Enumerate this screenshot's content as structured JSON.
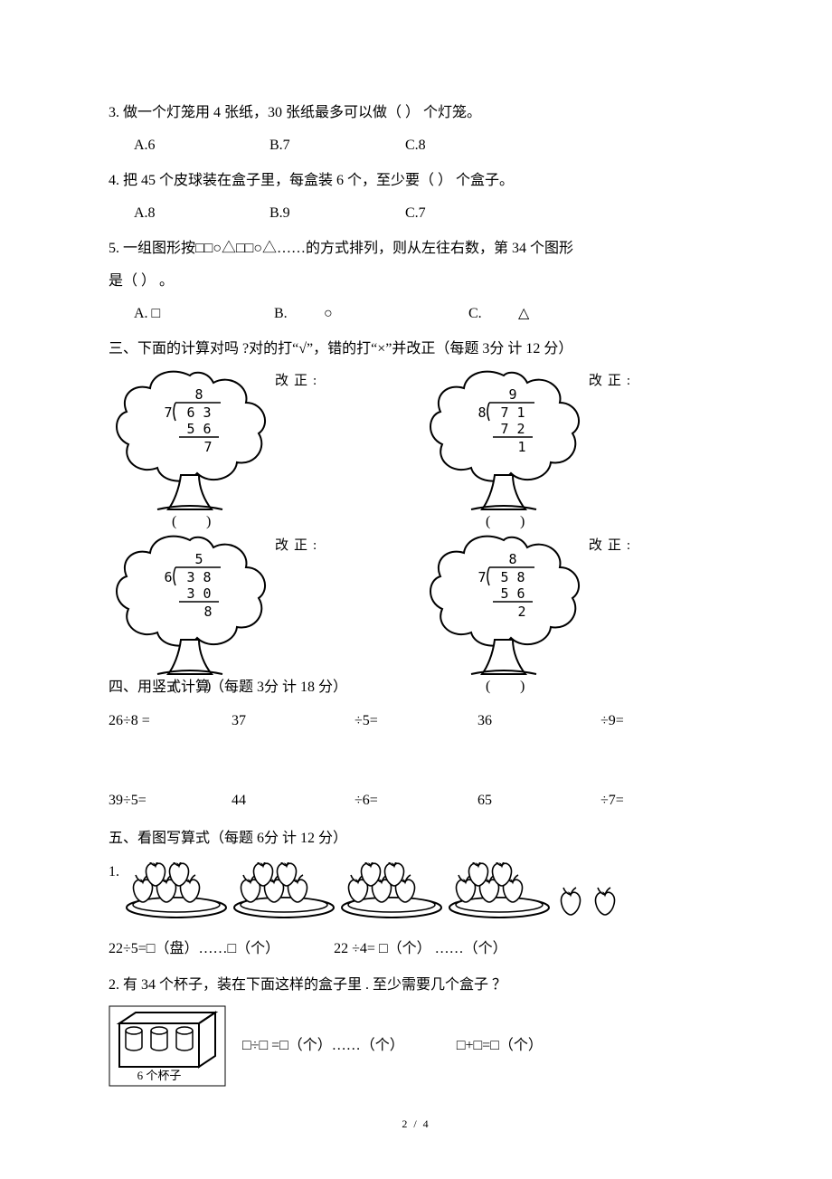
{
  "q3": {
    "text": "3. 做一个灯笼用  4 张纸，30 张纸最多可以做（ ）   个灯笼。",
    "a": "A.6",
    "b": "B.7",
    "c": "C.8",
    "a_w": 150,
    "b_w": 150
  },
  "q4": {
    "text": "4. 把 45 个皮球装在盒子里，每盒装   6 个，至少要（ ）   个盒子。",
    "a": "A.8",
    "b": "B.9",
    "c": "C.7",
    "a_w": 150,
    "b_w": 150
  },
  "q5": {
    "line1": "5. 一组图形按□□○△□□○△……的方式排列，则从左往右数，第      34 个图形",
    "line2": "是（  ）  。",
    "a": "A. □",
    "b": "B.",
    "b_sym": "○",
    "c": "C.",
    "c_sym": "△",
    "a_w": 155,
    "b_w": 55,
    "bs_w": 160,
    "c_w": 55
  },
  "sec3": {
    "title": "三、下面的计算对吗 ?对的打“√”，错的打“×”并改正（每题 3分   计 12 分）",
    "gaizheng": "改正:",
    "problems": [
      {
        "divisor": "7",
        "dividend": "6  3",
        "quo": "8",
        "sub": "5  6",
        "rem": "7"
      },
      {
        "divisor": "8",
        "dividend": "7  1",
        "quo": "9",
        "sub": "7  2",
        "rem": "1"
      },
      {
        "divisor": "6",
        "dividend": "3  8",
        "quo": "5",
        "sub": "3  0",
        "rem": "8"
      },
      {
        "divisor": "7",
        "dividend": "5  8",
        "quo": "8",
        "sub": "5  6",
        "rem": "2"
      }
    ]
  },
  "sec4": {
    "title": "四、用竖式计算（每题 3分   计 18 分）",
    "r1": {
      "a": "26÷8 =",
      "b": "37",
      "c": "÷5=",
      "d": "36",
      "e": "÷9="
    },
    "r2": {
      "a": "39÷5=",
      "b": "44",
      "c": "÷6=",
      "d": "65",
      "e": "÷7="
    }
  },
  "sec5": {
    "title": "五、看图写算式（每题 6分   计 12 分）",
    "q1_label": "1.",
    "eq1a": "22÷5=□（盘）……□（个）",
    "eq1b": "22        ÷4= □（个） ……（个）",
    "q2": "2. 有 34 个杯子，装在下面这样的盒子里  . 至少需要几个盒子 ？",
    "box_label": "6 个杯子",
    "eq2a": "□÷□ =□（个）……（个）",
    "eq2b": "□+□=□（个）"
  },
  "pagenum": "2 / 4",
  "colors": {
    "ink": "#000000",
    "paper": "#ffffff"
  }
}
